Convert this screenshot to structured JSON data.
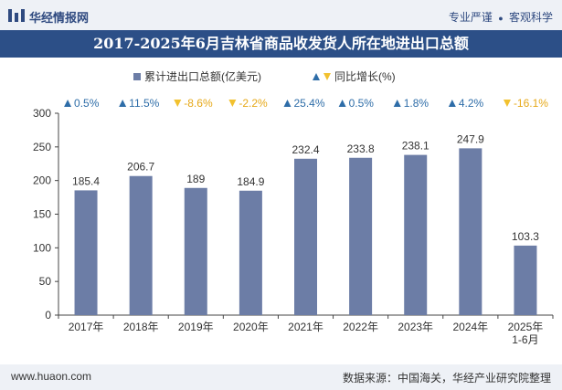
{
  "header": {
    "brand": "华经情报网",
    "slogan_left": "专业严谨",
    "slogan_sep": "●",
    "slogan_right": "客观科学"
  },
  "footer": {
    "website": "www.huaon.com",
    "source": "数据来源：中国海关，华经产业研究院整理"
  },
  "colors": {
    "bar": "#6c7da6",
    "up": "#2e6da8",
    "down": "#f2c12e",
    "title_bg": "#2c4f87",
    "axis": "#444444"
  },
  "chart_data": {
    "type": "bar",
    "title": "2017-2025年6月吉林省商品收发货人所在地进出口总额",
    "categories": [
      "2017年",
      "2018年",
      "2019年",
      "2020年",
      "2021年",
      "2022年",
      "2023年",
      "2024年",
      "2025年\n1-6月"
    ],
    "series": [
      {
        "name": "累计进出口总额(亿美元)",
        "values": [
          185.4,
          206.7,
          189,
          184.9,
          232.4,
          233.8,
          238.1,
          247.9,
          103.3
        ]
      },
      {
        "name": "同比增长(%)",
        "values": [
          0.5,
          11.5,
          -8.6,
          -2.2,
          25.4,
          0.5,
          1.8,
          4.2,
          -16.1
        ]
      }
    ],
    "growth_labels": [
      "0.5%",
      "11.5%",
      "-8.6%",
      "-2.2%",
      "25.4%",
      "0.5%",
      "1.8%",
      "4.2%",
      "-16.1%"
    ],
    "yticks": [
      0,
      50,
      100,
      150,
      200,
      250,
      300
    ],
    "ylim": [
      0,
      300
    ],
    "legend_position": "top-center",
    "grid": false
  }
}
